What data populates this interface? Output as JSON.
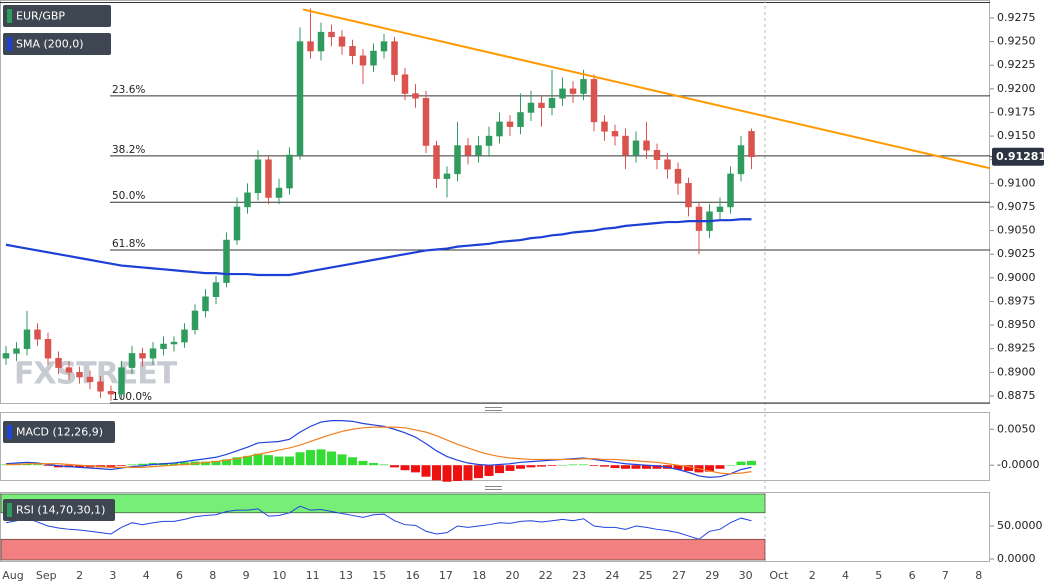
{
  "chart_data": {
    "type": "candlestick",
    "symbol": "EUR/GBP",
    "sma_label": "SMA (200,0)",
    "watermark": "FXSTREET",
    "categories": [
      "Aug",
      "Sep",
      "2",
      "3",
      "4",
      "6",
      "8",
      "9",
      "10",
      "11",
      "13",
      "15",
      "16",
      "17",
      "18",
      "20",
      "22",
      "23",
      "24",
      "25",
      "27",
      "29",
      "30",
      "Oct",
      "2",
      "4",
      "5",
      "6",
      "7",
      "8"
    ],
    "open": [
      0.8915,
      0.892,
      0.8925,
      0.8945,
      0.8935,
      0.8915,
      0.8905,
      0.89,
      0.8895,
      0.889,
      0.888,
      0.8877,
      0.8905,
      0.892,
      0.8915,
      0.8925,
      0.893,
      0.8932,
      0.8945,
      0.8965,
      0.898,
      0.8995,
      0.904,
      0.9075,
      0.909,
      0.9125,
      0.9085,
      0.9095,
      0.913,
      0.925,
      0.924,
      0.926,
      0.9255,
      0.9245,
      0.9235,
      0.9225,
      0.924,
      0.925,
      0.9215,
      0.9195,
      0.919,
      0.914,
      0.9105,
      0.911,
      0.914,
      0.913,
      0.914,
      0.915,
      0.9165,
      0.916,
      0.9175,
      0.9185,
      0.918,
      0.919,
      0.92,
      0.9195,
      0.921,
      0.9165,
      0.9155,
      0.915,
      0.913,
      0.9145,
      0.9135,
      0.9125,
      0.9115,
      0.91,
      0.9075,
      0.905,
      0.907,
      0.9075,
      0.911,
      0.9155
    ],
    "high": [
      0.8928,
      0.8932,
      0.8965,
      0.8952,
      0.8942,
      0.8922,
      0.8912,
      0.8906,
      0.8902,
      0.8896,
      0.8886,
      0.8912,
      0.8928,
      0.8926,
      0.8932,
      0.8938,
      0.8938,
      0.8952,
      0.8972,
      0.8988,
      0.9002,
      0.9048,
      0.9085,
      0.91,
      0.9135,
      0.913,
      0.9105,
      0.9138,
      0.9265,
      0.9285,
      0.927,
      0.9268,
      0.9262,
      0.9252,
      0.9242,
      0.9248,
      0.9258,
      0.9255,
      0.9222,
      0.9205,
      0.9198,
      0.9145,
      0.9118,
      0.9165,
      0.9148,
      0.915,
      0.916,
      0.9175,
      0.9172,
      0.9195,
      0.9198,
      0.9192,
      0.922,
      0.9212,
      0.9208,
      0.922,
      0.9215,
      0.9172,
      0.9162,
      0.9158,
      0.9155,
      0.9165,
      0.9142,
      0.9132,
      0.9122,
      0.9106,
      0.908,
      0.9078,
      0.9085,
      0.9118,
      0.915,
      0.9158
    ],
    "low": [
      0.8908,
      0.8912,
      0.8918,
      0.8928,
      0.8908,
      0.8898,
      0.8892,
      0.8888,
      0.8882,
      0.8873,
      0.887,
      0.8872,
      0.8898,
      0.8906,
      0.8908,
      0.8918,
      0.8922,
      0.8926,
      0.894,
      0.8958,
      0.8972,
      0.899,
      0.9035,
      0.9068,
      0.9082,
      0.9078,
      0.9078,
      0.9088,
      0.9125,
      0.9232,
      0.923,
      0.9245,
      0.9236,
      0.9226,
      0.9205,
      0.9218,
      0.9232,
      0.9208,
      0.9188,
      0.918,
      0.9132,
      0.9095,
      0.9085,
      0.9102,
      0.912,
      0.9122,
      0.9128,
      0.9142,
      0.915,
      0.9152,
      0.9166,
      0.916,
      0.9172,
      0.9182,
      0.9185,
      0.9188,
      0.9155,
      0.9145,
      0.914,
      0.9115,
      0.9122,
      0.9126,
      0.9115,
      0.9105,
      0.9088,
      0.9065,
      0.9025,
      0.9042,
      0.9062,
      0.9068,
      0.9102,
      0.9115
    ],
    "close": [
      0.892,
      0.8925,
      0.8945,
      0.8935,
      0.8915,
      0.8905,
      0.89,
      0.8895,
      0.889,
      0.888,
      0.8877,
      0.8905,
      0.892,
      0.8915,
      0.8925,
      0.893,
      0.8932,
      0.8945,
      0.8965,
      0.898,
      0.8995,
      0.904,
      0.9075,
      0.909,
      0.9125,
      0.9085,
      0.9095,
      0.913,
      0.925,
      0.924,
      0.926,
      0.9255,
      0.9245,
      0.9235,
      0.9225,
      0.924,
      0.925,
      0.9215,
      0.9195,
      0.919,
      0.914,
      0.9105,
      0.911,
      0.914,
      0.913,
      0.914,
      0.915,
      0.9165,
      0.916,
      0.9175,
      0.9185,
      0.918,
      0.919,
      0.92,
      0.9195,
      0.921,
      0.9165,
      0.9155,
      0.915,
      0.913,
      0.9145,
      0.9135,
      0.9125,
      0.9115,
      0.91,
      0.9075,
      0.905,
      0.907,
      0.9075,
      0.911,
      0.914,
      0.91281
    ],
    "up_color": "#2f9b5f",
    "down_color": "#d9534f",
    "sma": {
      "color": "#1c3fd4",
      "values": [
        0.9035,
        0.9033,
        0.9031,
        0.9029,
        0.9027,
        0.9025,
        0.9023,
        0.9021,
        0.9019,
        0.9017,
        0.9015,
        0.9013,
        0.9012,
        0.9011,
        0.901,
        0.9009,
        0.9008,
        0.9007,
        0.9006,
        0.9005,
        0.9005,
        0.9004,
        0.9004,
        0.9004,
        0.9003,
        0.9003,
        0.9003,
        0.9003,
        0.9005,
        0.9007,
        0.9009,
        0.9011,
        0.9013,
        0.9015,
        0.9017,
        0.9019,
        0.9021,
        0.9023,
        0.9025,
        0.9027,
        0.9029,
        0.903,
        0.9031,
        0.9033,
        0.9034,
        0.9035,
        0.9036,
        0.9038,
        0.9039,
        0.904,
        0.9042,
        0.9043,
        0.9045,
        0.9046,
        0.9048,
        0.9049,
        0.905,
        0.9052,
        0.9053,
        0.9055,
        0.9056,
        0.9057,
        0.9058,
        0.9059,
        0.9059,
        0.906,
        0.906,
        0.906,
        0.9061,
        0.9061,
        0.9062,
        0.9062
      ]
    },
    "trend_line": {
      "color": "#ff9a00",
      "values": [
        0.9284,
        0.9116
      ]
    },
    "fib_levels": [
      {
        "label": "23.6%",
        "value": 0.91925
      },
      {
        "label": "38.2%",
        "value": 0.9129
      },
      {
        "label": "50.0%",
        "value": 0.908
      },
      {
        "label": "61.8%",
        "value": 0.90295
      },
      {
        "label": "100.0%",
        "value": 0.88675
      }
    ],
    "ylim": [
      0.88665,
      0.9294
    ],
    "yticks": [
      0.9275,
      {
        "value": 0.925,
        "label": "0.9250"
      },
      0.9225,
      {
        "value": 0.92,
        "label": "0.9200"
      },
      0.9175,
      {
        "value": 0.915,
        "label": "0.9150"
      },
      0.9125,
      {
        "value": 0.91,
        "label": "0.9100"
      },
      0.9075,
      {
        "value": 0.905,
        "label": "0.9050"
      },
      0.9025,
      {
        "value": 0.9,
        "label": "0.9000"
      },
      0.8975,
      {
        "value": 0.895,
        "label": "0.8950"
      },
      0.8925,
      {
        "value": 0.89,
        "label": "0.8900"
      },
      0.8875
    ],
    "macd": {
      "label": "MACD (12,26,9)",
      "ylim": [
        -0.0022,
        0.0074
      ],
      "yticks": [
        {
          "value": 0.005,
          "label": "0.0050"
        },
        {
          "value": 0,
          "label": "-0.0000"
        }
      ],
      "macd": {
        "color": "#2244dd",
        "values": [
          0.0002,
          0.0003,
          0.0004,
          0.0003,
          0.0001,
          -0.0001,
          -0.0002,
          -0.0003,
          -0.0004,
          -0.0005,
          -0.0006,
          -0.0004,
          -0.0002,
          -0.0001,
          0.0001,
          0.0002,
          0.0003,
          0.0005,
          0.0007,
          0.0009,
          0.0011,
          0.0015,
          0.002,
          0.0025,
          0.0031,
          0.0032,
          0.0033,
          0.0036,
          0.0046,
          0.0054,
          0.006,
          0.0062,
          0.0062,
          0.0061,
          0.0058,
          0.0056,
          0.0054,
          0.005,
          0.0045,
          0.0039,
          0.003,
          0.002,
          0.0012,
          0.0007,
          0.0003,
          0.0001,
          0.0,
          0.0001,
          0.0002,
          0.0004,
          0.0005,
          0.0006,
          0.0007,
          0.0008,
          0.0009,
          0.001,
          0.0008,
          0.0006,
          0.0004,
          0.0002,
          0.0001,
          0.0,
          -0.0001,
          -0.0003,
          -0.0006,
          -0.001,
          -0.0015,
          -0.0017,
          -0.0016,
          -0.0012,
          -0.0006,
          -0.0003
        ]
      },
      "signal": {
        "color": "#f08020",
        "values": [
          0.0001,
          0.0001,
          0.0002,
          0.0002,
          0.0002,
          0.0002,
          0.0001,
          0.0,
          -0.0001,
          -0.0002,
          -0.0003,
          -0.0003,
          -0.0003,
          -0.0003,
          -0.0002,
          -0.0001,
          0.0,
          0.0001,
          0.0002,
          0.0004,
          0.0005,
          0.0007,
          0.0009,
          0.0012,
          0.0015,
          0.0018,
          0.0021,
          0.0024,
          0.0028,
          0.0033,
          0.0038,
          0.0043,
          0.0047,
          0.005,
          0.0052,
          0.0053,
          0.0053,
          0.0053,
          0.0052,
          0.0049,
          0.0046,
          0.0041,
          0.0035,
          0.0029,
          0.0024,
          0.0019,
          0.0015,
          0.0012,
          0.001,
          0.0009,
          0.0008,
          0.0008,
          0.0008,
          0.0008,
          0.0008,
          0.0009,
          0.0009,
          0.0008,
          0.0008,
          0.0007,
          0.0006,
          0.0005,
          0.0004,
          0.0002,
          0.0,
          -0.0002,
          -0.0005,
          -0.0008,
          -0.0011,
          -0.0012,
          -0.0011,
          -0.0009
        ]
      },
      "histogram": {
        "up_color": "#33dd33",
        "down_color": "#ee1111",
        "values": [
          0.0001,
          0.0002,
          0.0002,
          0.0001,
          -0.0001,
          -0.0003,
          -0.0003,
          -0.0003,
          -0.0003,
          -0.0003,
          -0.0003,
          -0.0001,
          0.0001,
          0.0002,
          0.0003,
          0.0003,
          0.0003,
          0.0004,
          0.0005,
          0.0005,
          0.0006,
          0.0008,
          0.0011,
          0.0013,
          0.0016,
          0.0014,
          0.0012,
          0.0012,
          0.0018,
          0.0021,
          0.0022,
          0.0019,
          0.0015,
          0.0011,
          0.0006,
          0.0003,
          0.0001,
          -0.0003,
          -0.0007,
          -0.001,
          -0.0016,
          -0.0021,
          -0.0023,
          -0.0022,
          -0.0021,
          -0.0018,
          -0.0015,
          -0.0011,
          -0.0008,
          -0.0005,
          -0.0003,
          -0.0002,
          -0.0001,
          0.0,
          0.0001,
          0.0001,
          -0.0001,
          -0.0002,
          -0.0004,
          -0.0005,
          -0.0005,
          -0.0005,
          -0.0005,
          -0.0005,
          -0.0006,
          -0.0008,
          -0.001,
          -0.0009,
          -0.0005,
          0.0,
          0.0005,
          0.0006
        ]
      }
    },
    "rsi": {
      "label": "RSI (14,70,30,1)",
      "ylim": [
        -4.5,
        101.5
      ],
      "yticks": [
        {
          "value": 50,
          "label": "50.0000"
        },
        {
          "value": 0,
          "label": "0.0000"
        }
      ],
      "overbought": 70,
      "oversold": 30,
      "overbought_color": "#77ee77",
      "oversold_color": "#f38080",
      "color": "#2244dd",
      "values": [
        55,
        58,
        62,
        56,
        50,
        47,
        45,
        44,
        42,
        40,
        38,
        48,
        55,
        52,
        55,
        57,
        57,
        60,
        64,
        66,
        67,
        72,
        74,
        74,
        76,
        65,
        66,
        70,
        80,
        74,
        75,
        72,
        69,
        66,
        63,
        67,
        68,
        58,
        52,
        51,
        42,
        38,
        40,
        50,
        48,
        50,
        52,
        55,
        54,
        57,
        58,
        56,
        58,
        60,
        58,
        61,
        50,
        48,
        48,
        45,
        50,
        48,
        45,
        43,
        40,
        35,
        30,
        42,
        45,
        55,
        62,
        58
      ]
    }
  }
}
